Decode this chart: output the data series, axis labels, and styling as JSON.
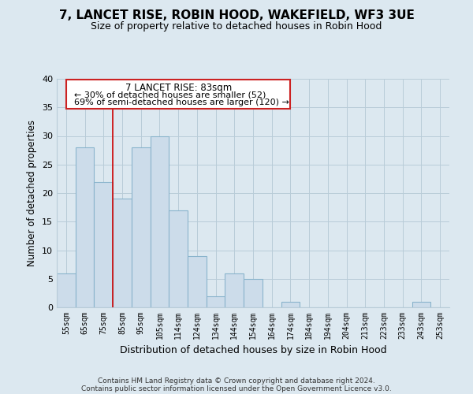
{
  "title": "7, LANCET RISE, ROBIN HOOD, WAKEFIELD, WF3 3UE",
  "subtitle": "Size of property relative to detached houses in Robin Hood",
  "xlabel": "Distribution of detached houses by size in Robin Hood",
  "ylabel": "Number of detached properties",
  "footer_line1": "Contains HM Land Registry data © Crown copyright and database right 2024.",
  "footer_line2": "Contains public sector information licensed under the Open Government Licence v3.0.",
  "bin_labels": [
    "55sqm",
    "65sqm",
    "75sqm",
    "85sqm",
    "95sqm",
    "105sqm",
    "114sqm",
    "124sqm",
    "134sqm",
    "144sqm",
    "154sqm",
    "164sqm",
    "174sqm",
    "184sqm",
    "194sqm",
    "204sqm",
    "213sqm",
    "223sqm",
    "233sqm",
    "243sqm",
    "253sqm"
  ],
  "bar_heights": [
    6,
    28,
    22,
    19,
    28,
    30,
    17,
    9,
    2,
    6,
    5,
    0,
    1,
    0,
    0,
    0,
    0,
    0,
    0,
    1,
    0
  ],
  "bar_color": "#ccdcea",
  "bar_edge_color": "#8ab4cc",
  "vline_color": "#cc0000",
  "annotation_text_line1": "7 LANCET RISE: 83sqm",
  "annotation_text_line2": "← 30% of detached houses are smaller (52)",
  "annotation_text_line3": "69% of semi-detached houses are larger (120) →",
  "ylim": [
    0,
    40
  ],
  "background_color": "#dce8f0",
  "grid_color": "#b8ccd8"
}
